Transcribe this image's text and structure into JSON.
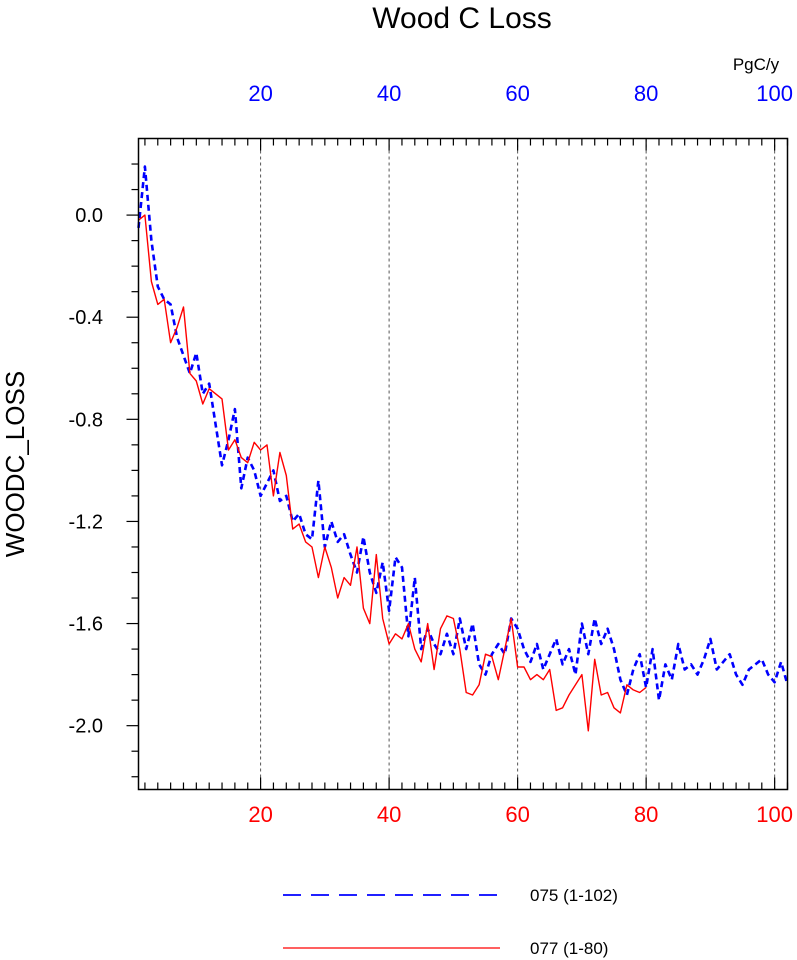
{
  "chart_data": {
    "type": "line",
    "title": "Wood C Loss",
    "ylabel": "WOODC_LOSS",
    "units": "PgC/y",
    "xlim": [
      1,
      102
    ],
    "ylim": [
      -2.25,
      0.3
    ],
    "x_ticks": [
      20,
      40,
      60,
      80,
      100
    ],
    "y_ticks": [
      0.0,
      -0.4,
      -0.8,
      -1.2,
      -1.6,
      -2.0
    ],
    "y_tick_labels": [
      "0.0",
      "-0.4",
      "-0.8",
      "-1.2",
      "-1.6",
      "-2.0"
    ],
    "grid": "vertical dashed at major x ticks",
    "top_axis_color": "#0000ff",
    "bottom_axis_color": "#ff0000",
    "series": [
      {
        "name": "075 (1-102)",
        "color": "#0000ff",
        "style": "dashed",
        "x_start": 1,
        "values": [
          -0.05,
          0.19,
          -0.1,
          -0.28,
          -0.33,
          -0.35,
          -0.48,
          -0.55,
          -0.62,
          -0.54,
          -0.7,
          -0.66,
          -0.82,
          -0.98,
          -0.88,
          -0.76,
          -1.07,
          -0.95,
          -1.0,
          -1.1,
          -1.05,
          -1.0,
          -1.12,
          -1.1,
          -1.2,
          -1.17,
          -1.25,
          -1.27,
          -1.04,
          -1.3,
          -1.2,
          -1.28,
          -1.25,
          -1.33,
          -1.4,
          -1.26,
          -1.4,
          -1.48,
          -1.36,
          -1.55,
          -1.34,
          -1.38,
          -1.65,
          -1.42,
          -1.7,
          -1.62,
          -1.68,
          -1.72,
          -1.64,
          -1.72,
          -1.58,
          -1.7,
          -1.6,
          -1.76,
          -1.8,
          -1.72,
          -1.68,
          -1.72,
          -1.58,
          -1.62,
          -1.7,
          -1.75,
          -1.68,
          -1.78,
          -1.72,
          -1.66,
          -1.76,
          -1.7,
          -1.8,
          -1.6,
          -1.72,
          -1.58,
          -1.68,
          -1.62,
          -1.7,
          -1.82,
          -1.88,
          -1.78,
          -1.72,
          -1.85,
          -1.7,
          -1.9,
          -1.76,
          -1.82,
          -1.68,
          -1.78,
          -1.76,
          -1.8,
          -1.74,
          -1.66,
          -1.78,
          -1.75,
          -1.72,
          -1.8,
          -1.84,
          -1.78,
          -1.76,
          -1.74,
          -1.8,
          -1.83,
          -1.75,
          -1.84
        ]
      },
      {
        "name": "077 (1-80)",
        "color": "#ff0000",
        "style": "solid",
        "x_start": 1,
        "values": [
          -0.02,
          0.0,
          -0.26,
          -0.35,
          -0.33,
          -0.5,
          -0.44,
          -0.36,
          -0.62,
          -0.65,
          -0.74,
          -0.68,
          -0.7,
          -0.72,
          -0.92,
          -0.88,
          -0.95,
          -0.97,
          -0.89,
          -0.92,
          -0.9,
          -1.1,
          -0.93,
          -1.02,
          -1.23,
          -1.21,
          -1.28,
          -1.3,
          -1.42,
          -1.3,
          -1.38,
          -1.5,
          -1.42,
          -1.45,
          -1.3,
          -1.54,
          -1.6,
          -1.33,
          -1.58,
          -1.68,
          -1.64,
          -1.66,
          -1.6,
          -1.7,
          -1.75,
          -1.6,
          -1.78,
          -1.62,
          -1.57,
          -1.58,
          -1.7,
          -1.87,
          -1.88,
          -1.84,
          -1.72,
          -1.73,
          -1.82,
          -1.7,
          -1.58,
          -1.77,
          -1.77,
          -1.82,
          -1.8,
          -1.82,
          -1.78,
          -1.94,
          -1.93,
          -1.88,
          -1.84,
          -1.8,
          -2.02,
          -1.74,
          -1.88,
          -1.87,
          -1.93,
          -1.95,
          -1.84,
          -1.86,
          -1.87,
          -1.85
        ]
      }
    ],
    "legend": [
      {
        "label": "075 (1-102)",
        "color": "#0000ff",
        "style": "dashed"
      },
      {
        "label": "077 (1-80)",
        "color": "#ff0000",
        "style": "solid"
      }
    ]
  }
}
